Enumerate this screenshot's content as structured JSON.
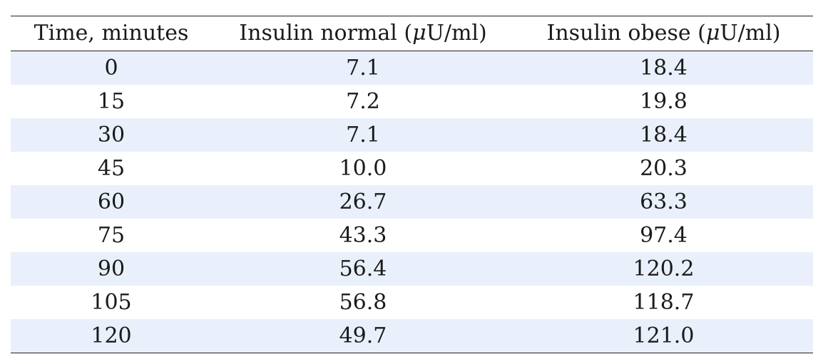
{
  "table": {
    "headers": {
      "time": "Time, minutes",
      "normal_prefix": "Insulin normal (",
      "normal_mu": "μ",
      "normal_suffix": "U/ml)",
      "obese_prefix": "Insulin obese (",
      "obese_mu": "μ",
      "obese_suffix": "U/ml)"
    },
    "row_shading_color": "#e9f0fb",
    "rows": [
      {
        "time": "0",
        "normal": "7.1",
        "obese": "18.4"
      },
      {
        "time": "15",
        "normal": "7.2",
        "obese": "19.8"
      },
      {
        "time": "30",
        "normal": "7.1",
        "obese": "18.4"
      },
      {
        "time": "45",
        "normal": "10.0",
        "obese": "20.3"
      },
      {
        "time": "60",
        "normal": "26.7",
        "obese": "63.3"
      },
      {
        "time": "75",
        "normal": "43.3",
        "obese": "97.4"
      },
      {
        "time": "90",
        "normal": "56.4",
        "obese": "120.2"
      },
      {
        "time": "105",
        "normal": "56.8",
        "obese": "118.7"
      },
      {
        "time": "120",
        "normal": "49.7",
        "obese": "121.0"
      }
    ]
  }
}
